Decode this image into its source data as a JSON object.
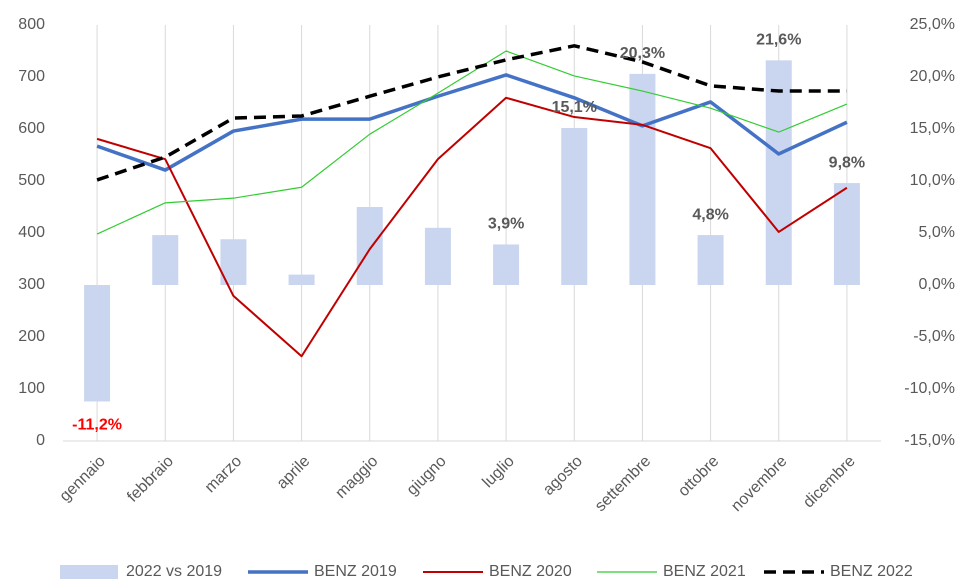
{
  "chart_data": {
    "type": "combo",
    "categories": [
      "gennaio",
      "febbraio",
      "marzo",
      "aprile",
      "maggio",
      "giugno",
      "luglio",
      "agosto",
      "settembre",
      "ottobre",
      "novembre",
      "dicembre"
    ],
    "series": [
      {
        "name": "2022 vs 2019",
        "type": "bar",
        "axis": "y2",
        "color": "#cad6ef",
        "values": [
          -11.2,
          4.8,
          4.4,
          1.0,
          7.5,
          5.5,
          3.9,
          15.1,
          20.3,
          4.8,
          21.6,
          9.8
        ],
        "value_labels": [
          "-11,2%",
          null,
          null,
          null,
          null,
          null,
          "3,9%",
          "15,1%",
          "20,3%",
          "4,8%",
          "21,6%",
          "9,8%"
        ]
      },
      {
        "name": "BENZ 2019",
        "type": "line",
        "color": "#4472c4",
        "width": 3.5,
        "values": [
          567,
          521,
          596,
          619,
          619,
          663,
          704,
          660,
          606,
          652,
          552,
          613
        ]
      },
      {
        "name": "BENZ 2020",
        "type": "line",
        "color": "#c00000",
        "width": 2,
        "values": [
          581,
          542,
          279,
          163,
          369,
          542,
          660,
          623,
          608,
          563,
          402,
          487
        ]
      },
      {
        "name": "BENZ 2021",
        "type": "line",
        "color": "#33cc33",
        "width": 1.2,
        "values": [
          398,
          458,
          467,
          488,
          590,
          669,
          750,
          702,
          673,
          640,
          594,
          648
        ]
      },
      {
        "name": "BENZ 2022",
        "type": "line",
        "color": "#000000",
        "width": 3.5,
        "dashed": true,
        "values": [
          502,
          546,
          621,
          625,
          663,
          700,
          733,
          760,
          729,
          683,
          673,
          673
        ]
      }
    ],
    "ylim": [
      0,
      800
    ],
    "yticks": [
      0,
      100,
      200,
      300,
      400,
      500,
      600,
      700,
      800
    ],
    "y2lim": [
      -15,
      25
    ],
    "y2ticks": [
      {
        "value": -15,
        "label": "-15,0%"
      },
      {
        "value": -10,
        "label": "-10,0%"
      },
      {
        "value": -5,
        "label": "-5,0%"
      },
      {
        "value": 0,
        "label": "0,0%"
      },
      {
        "value": 5,
        "label": "5,0%"
      },
      {
        "value": 10,
        "label": "10,0%"
      },
      {
        "value": 15,
        "label": "15,0%"
      },
      {
        "value": 20,
        "label": "20,0%"
      },
      {
        "value": 25,
        "label": "25,0%"
      }
    ],
    "legend": "bottom"
  }
}
